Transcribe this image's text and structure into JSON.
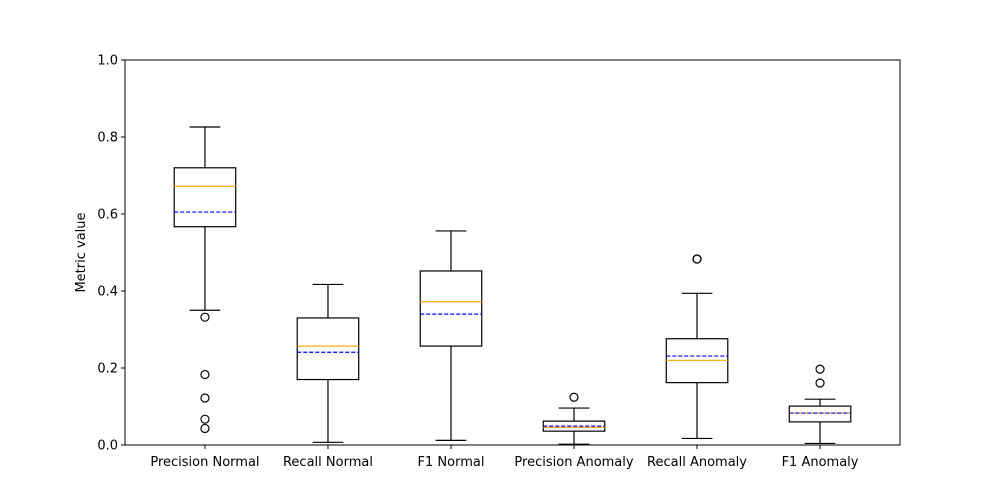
{
  "chart_data": {
    "type": "box",
    "title": "",
    "xlabel": "",
    "ylabel": "Metric value",
    "ylim": [
      0,
      1.0
    ],
    "yticks": [
      "0.0",
      "0.2",
      "0.4",
      "0.6",
      "0.8",
      "1.0"
    ],
    "grid": false,
    "median_color": "#ffa500",
    "mean_color": "#0000ff",
    "categories": [
      "Precision Normal",
      "Recall Normal",
      "F1 Normal",
      "Precision Anomaly",
      "Recall Anomaly",
      "F1 Anomaly"
    ],
    "boxes": [
      {
        "whisker_low": 0.35,
        "q1": 0.567,
        "median": 0.672,
        "mean": 0.605,
        "q3": 0.72,
        "whisker_high": 0.826,
        "outliers": [
          0.332,
          0.183,
          0.122,
          0.067,
          0.043
        ]
      },
      {
        "whisker_low": 0.007,
        "q1": 0.17,
        "median": 0.257,
        "mean": 0.241,
        "q3": 0.33,
        "whisker_high": 0.417,
        "outliers": []
      },
      {
        "whisker_low": 0.012,
        "q1": 0.257,
        "median": 0.372,
        "mean": 0.34,
        "q3": 0.452,
        "whisker_high": 0.556,
        "outliers": []
      },
      {
        "whisker_low": 0.002,
        "q1": 0.036,
        "median": 0.046,
        "mean": 0.049,
        "q3": 0.062,
        "whisker_high": 0.096,
        "outliers": [
          0.124
        ]
      },
      {
        "whisker_low": 0.017,
        "q1": 0.162,
        "median": 0.22,
        "mean": 0.231,
        "q3": 0.276,
        "whisker_high": 0.394,
        "outliers": [
          0.483,
          0.483
        ]
      },
      {
        "whisker_low": 0.004,
        "q1": 0.06,
        "median": 0.083,
        "mean": 0.083,
        "q3": 0.101,
        "whisker_high": 0.119,
        "outliers": [
          0.197,
          0.161
        ]
      }
    ]
  }
}
